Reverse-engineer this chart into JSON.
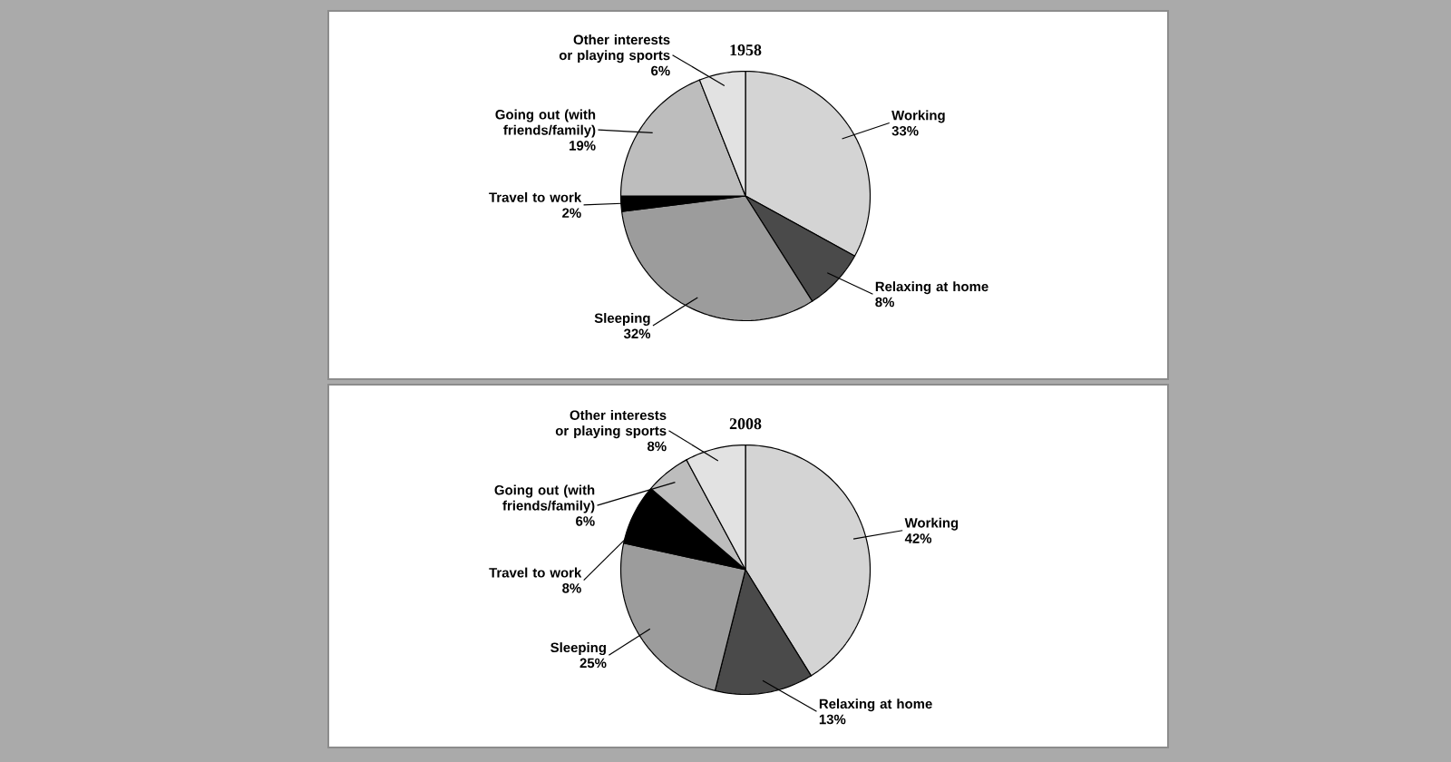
{
  "chart_data": [
    {
      "type": "pie",
      "title": "1958",
      "categories": [
        "Working",
        "Relaxing at home",
        "Sleeping",
        "Travel to work",
        "Going out (with friends/family)",
        "Other interests or playing sports"
      ],
      "values": [
        33,
        8,
        32,
        2,
        19,
        6
      ],
      "value_labels": [
        "33%",
        "8%",
        "32%",
        "2%",
        "19%",
        "6%"
      ],
      "colors": [
        "#d4d4d4",
        "#4a4a4a",
        "#9c9c9c",
        "#000000",
        "#bdbdbd",
        "#e2e2e2"
      ]
    },
    {
      "type": "pie",
      "title": "2008",
      "categories": [
        "Working",
        "Relaxing at home",
        "Sleeping",
        "Travel to work",
        "Going out (with friends/family)",
        "Other interests or playing sports"
      ],
      "values": [
        42,
        13,
        25,
        8,
        6,
        8
      ],
      "value_labels": [
        "42%",
        "13%",
        "25%",
        "8%",
        "6%",
        "8%"
      ],
      "colors": [
        "#d4d4d4",
        "#4a4a4a",
        "#9c9c9c",
        "#000000",
        "#bdbdbd",
        "#e2e2e2"
      ]
    }
  ]
}
